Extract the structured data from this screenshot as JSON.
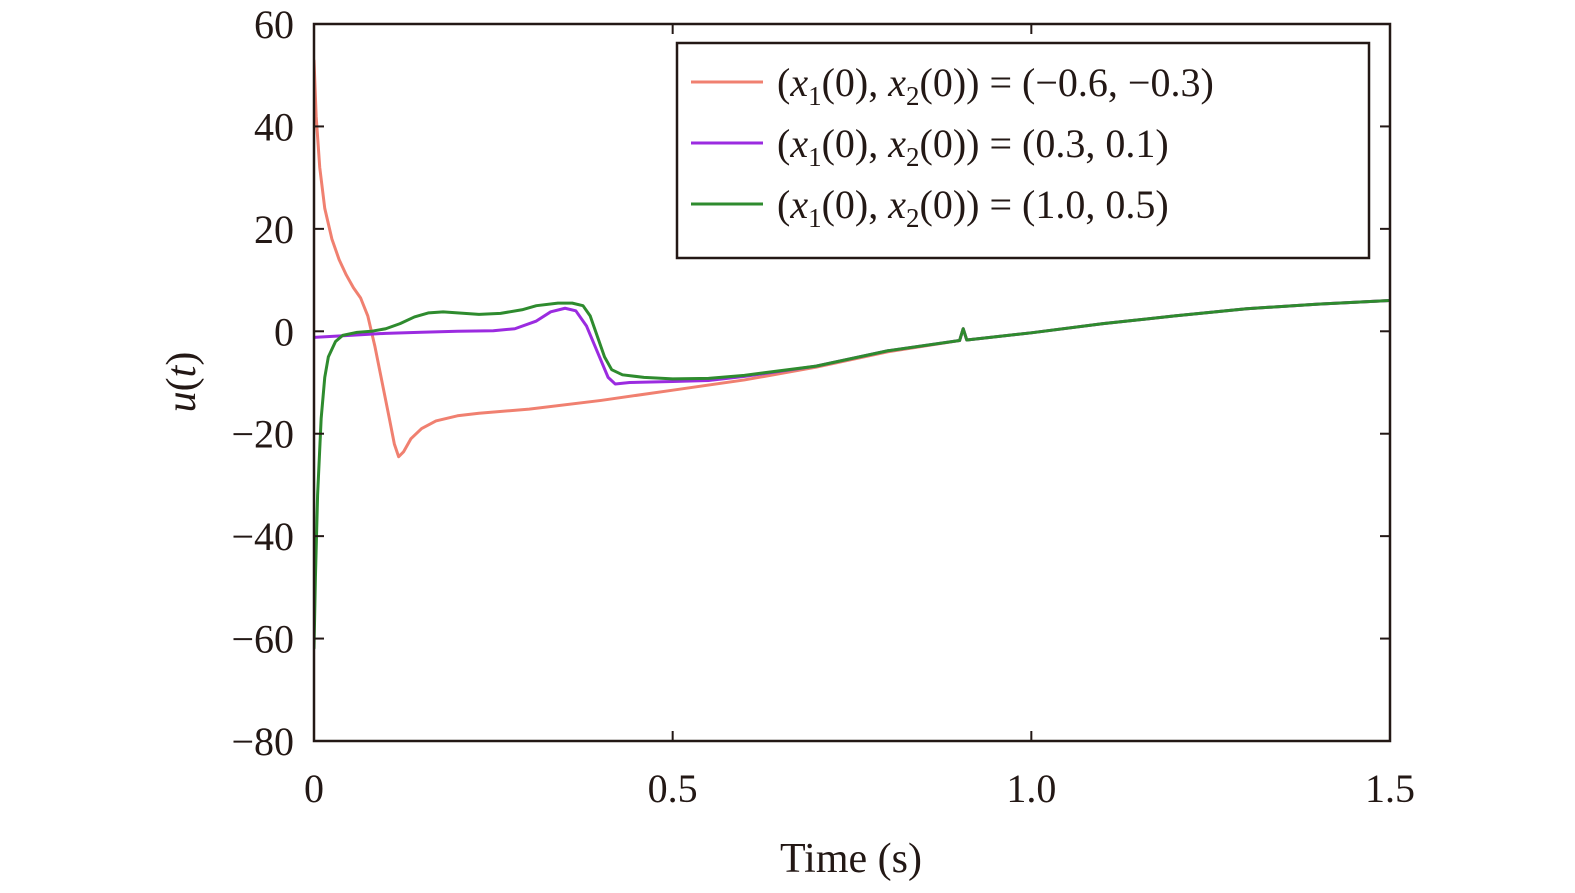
{
  "chart_data": {
    "type": "line",
    "xlabel": "Time (s)",
    "ylabel": {
      "var": "u",
      "open": "(",
      "arg": "t",
      "close": ")"
    },
    "xlim": [
      0,
      1.5
    ],
    "ylim": [
      -80,
      60
    ],
    "xticks": [
      0,
      0.5,
      1.0,
      1.5
    ],
    "xtick_labels": [
      "0",
      "0.5",
      "1.0",
      "1.5"
    ],
    "yticks": [
      60,
      40,
      20,
      0,
      -20,
      -40,
      -60,
      -80
    ],
    "ytick_labels": [
      "60",
      "40",
      "20",
      "0",
      "−20",
      "−40",
      "−60",
      "−80"
    ],
    "grid": false,
    "legend_position": "top-right",
    "legend_prefix": {
      "open": "(",
      "x1": "x",
      "sub1": "1",
      "mid1": "(0), ",
      "x2": "x",
      "sub2": "2",
      "mid2": "(0)) = "
    },
    "series": [
      {
        "name": "(x1(0), x2(0)) = (−0.6, −0.3)",
        "value_text": "(−0.6, −0.3)",
        "color": "#f08070",
        "points": [
          [
            0,
            53
          ],
          [
            0.003,
            42
          ],
          [
            0.008,
            32
          ],
          [
            0.015,
            24
          ],
          [
            0.025,
            18
          ],
          [
            0.035,
            14
          ],
          [
            0.045,
            11
          ],
          [
            0.055,
            8.5
          ],
          [
            0.065,
            6.5
          ],
          [
            0.075,
            3
          ],
          [
            0.085,
            -3
          ],
          [
            0.095,
            -10
          ],
          [
            0.105,
            -17
          ],
          [
            0.112,
            -22
          ],
          [
            0.118,
            -24.5
          ],
          [
            0.125,
            -23.5
          ],
          [
            0.135,
            -21
          ],
          [
            0.15,
            -19
          ],
          [
            0.17,
            -17.5
          ],
          [
            0.2,
            -16.5
          ],
          [
            0.23,
            -16
          ],
          [
            0.3,
            -15.2
          ],
          [
            0.4,
            -13.5
          ],
          [
            0.5,
            -11.5
          ],
          [
            0.6,
            -9.5
          ],
          [
            0.7,
            -7
          ],
          [
            0.8,
            -4
          ],
          [
            0.9,
            -1.8
          ],
          [
            0.905,
            0.5
          ],
          [
            0.91,
            -1.7
          ],
          [
            1.0,
            -0.3
          ],
          [
            1.1,
            1.5
          ],
          [
            1.2,
            3
          ],
          [
            1.3,
            4.4
          ],
          [
            1.4,
            5.3
          ],
          [
            1.5,
            6
          ]
        ]
      },
      {
        "name": "(x1(0), x2(0)) = (0.3, 0.1)",
        "value_text": "(0.3, 0.1)",
        "color": "#9b2be0",
        "points": [
          [
            0,
            -1.2
          ],
          [
            0.05,
            -0.8
          ],
          [
            0.1,
            -0.4
          ],
          [
            0.15,
            -0.2
          ],
          [
            0.2,
            0
          ],
          [
            0.25,
            0.1
          ],
          [
            0.28,
            0.5
          ],
          [
            0.31,
            2
          ],
          [
            0.33,
            3.8
          ],
          [
            0.35,
            4.5
          ],
          [
            0.365,
            4
          ],
          [
            0.38,
            1
          ],
          [
            0.395,
            -4
          ],
          [
            0.41,
            -9
          ],
          [
            0.42,
            -10.3
          ],
          [
            0.44,
            -10
          ],
          [
            0.5,
            -9.8
          ],
          [
            0.55,
            -9.6
          ],
          [
            0.6,
            -8.8
          ],
          [
            0.7,
            -6.8
          ],
          [
            0.8,
            -3.8
          ],
          [
            0.9,
            -1.8
          ],
          [
            0.905,
            0.5
          ],
          [
            0.91,
            -1.7
          ],
          [
            1.0,
            -0.3
          ],
          [
            1.1,
            1.5
          ],
          [
            1.2,
            3
          ],
          [
            1.3,
            4.4
          ],
          [
            1.4,
            5.3
          ],
          [
            1.5,
            6
          ]
        ]
      },
      {
        "name": "(x1(0), x2(0)) = (1.0, 0.5)",
        "value_text": "(1.0, 0.5)",
        "color": "#2e8b2e",
        "points": [
          [
            0,
            -62
          ],
          [
            0.002,
            -48
          ],
          [
            0.005,
            -32
          ],
          [
            0.01,
            -17
          ],
          [
            0.015,
            -9
          ],
          [
            0.02,
            -5
          ],
          [
            0.03,
            -2
          ],
          [
            0.04,
            -0.8
          ],
          [
            0.06,
            -0.2
          ],
          [
            0.08,
            0
          ],
          [
            0.1,
            0.5
          ],
          [
            0.12,
            1.5
          ],
          [
            0.14,
            2.8
          ],
          [
            0.16,
            3.6
          ],
          [
            0.18,
            3.8
          ],
          [
            0.2,
            3.6
          ],
          [
            0.23,
            3.3
          ],
          [
            0.26,
            3.5
          ],
          [
            0.29,
            4.2
          ],
          [
            0.31,
            5
          ],
          [
            0.34,
            5.5
          ],
          [
            0.36,
            5.5
          ],
          [
            0.375,
            5
          ],
          [
            0.385,
            3
          ],
          [
            0.395,
            -1
          ],
          [
            0.405,
            -5
          ],
          [
            0.415,
            -7.5
          ],
          [
            0.43,
            -8.5
          ],
          [
            0.46,
            -9
          ],
          [
            0.5,
            -9.3
          ],
          [
            0.55,
            -9.2
          ],
          [
            0.6,
            -8.6
          ],
          [
            0.7,
            -6.8
          ],
          [
            0.8,
            -3.8
          ],
          [
            0.9,
            -1.8
          ],
          [
            0.905,
            0.5
          ],
          [
            0.91,
            -1.7
          ],
          [
            1.0,
            -0.3
          ],
          [
            1.1,
            1.5
          ],
          [
            1.2,
            3
          ],
          [
            1.3,
            4.4
          ],
          [
            1.4,
            5.3
          ],
          [
            1.5,
            6
          ]
        ]
      }
    ]
  }
}
